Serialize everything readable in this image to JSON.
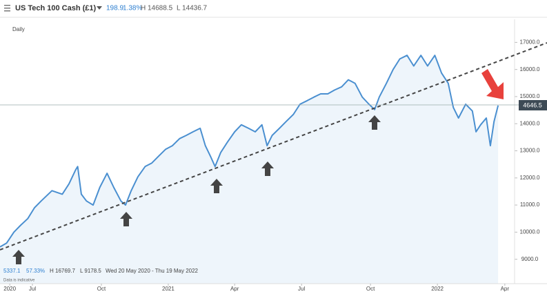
{
  "header": {
    "instrument": "US Tech 100 Cash (£1)",
    "change": "198.9",
    "change_pct": "1.38%",
    "high": "H 14688.5",
    "low": "L 14436.7"
  },
  "footer": {
    "open": "5337.1",
    "range_pct": "57.33%",
    "high": "H 16769.7",
    "low": "L 9178.5",
    "period": "Wed 20 May 2020 - Thu 19 May 2022",
    "note": "Data is indicative"
  },
  "price_tag": "4646.5",
  "chart_data": {
    "type": "line",
    "subtitle": "Daily",
    "color": "#4a8fd0",
    "x": [
      0,
      1.3,
      2.7,
      4,
      5.4,
      6.7,
      8,
      10.1,
      12.1,
      13.4,
      14.7,
      15.1,
      15.8,
      16.8,
      18.1,
      19.4,
      20.8,
      22.1,
      23.5,
      24.4,
      25.5,
      26.8,
      28.2,
      29.5,
      30.8,
      32.2,
      33.5,
      34.9,
      36.2,
      37.5,
      38.9,
      39.9,
      40.9,
      41.8,
      42.9,
      44.2,
      45.6,
      46.9,
      48.3,
      49.6,
      50.9,
      51.9,
      52.9,
      54.3,
      55.6,
      57,
      58.3,
      59.7,
      61,
      62.3,
      63.7,
      65,
      66.4,
      67.7,
      69,
      70.4,
      71.7,
      72.8,
      73.7,
      75.1,
      76.4,
      77.7,
      79.1,
      80.4,
      81.8,
      83.1,
      84.5,
      85.8,
      87.1,
      88.1,
      89.1,
      90.5,
      91.8,
      92.5,
      93.4,
      94.5,
      95.3,
      96,
      96.8
    ],
    "values": [
      9455,
      9600,
      10000,
      10250,
      10500,
      10900,
      11150,
      11530,
      11400,
      11780,
      12300,
      12420,
      11400,
      11150,
      11000,
      11650,
      12170,
      11650,
      11150,
      11000,
      11530,
      12040,
      12420,
      12550,
      12800,
      13060,
      13190,
      13450,
      13570,
      13700,
      13830,
      13190,
      12800,
      12420,
      12940,
      13320,
      13700,
      13960,
      13830,
      13700,
      13960,
      13190,
      13570,
      13830,
      14080,
      14340,
      14720,
      14850,
      14980,
      15100,
      15100,
      15240,
      15360,
      15620,
      15490,
      14980,
      14720,
      14520,
      14980,
      15490,
      16000,
      16390,
      16520,
      16130,
      16520,
      16130,
      16520,
      15870,
      15490,
      14600,
      14210,
      14720,
      14470,
      13700,
      13960,
      14210,
      13190,
      14080,
      14670
    ],
    "xlim": [
      0,
      100
    ],
    "xticks": [
      {
        "value": 1.9,
        "label": "2020"
      },
      {
        "value": 6.3,
        "label": "Jul"
      },
      {
        "value": 19.7,
        "label": "Oct"
      },
      {
        "value": 32.7,
        "label": "2021"
      },
      {
        "value": 45.6,
        "label": "Apr"
      },
      {
        "value": 58.6,
        "label": "Jul"
      },
      {
        "value": 72,
        "label": "Oct"
      },
      {
        "value": 85,
        "label": "2022"
      },
      {
        "value": 98.1,
        "label": "Apr"
      }
    ],
    "ylim": [
      8100,
      17850
    ],
    "yticks": [
      {
        "value": 9000,
        "label": "9000.0"
      },
      {
        "value": 10000,
        "label": "10000.0"
      },
      {
        "value": 11000,
        "label": "11000.0"
      },
      {
        "value": 12000,
        "label": "12000.0"
      },
      {
        "value": 13000,
        "label": "13000.0"
      },
      {
        "value": 14000,
        "label": "14000.0"
      },
      {
        "value": 15000,
        "label": "15000.0"
      },
      {
        "value": 16000,
        "label": "16000.0"
      },
      {
        "value": 17000,
        "label": "17000.0"
      }
    ]
  }
}
